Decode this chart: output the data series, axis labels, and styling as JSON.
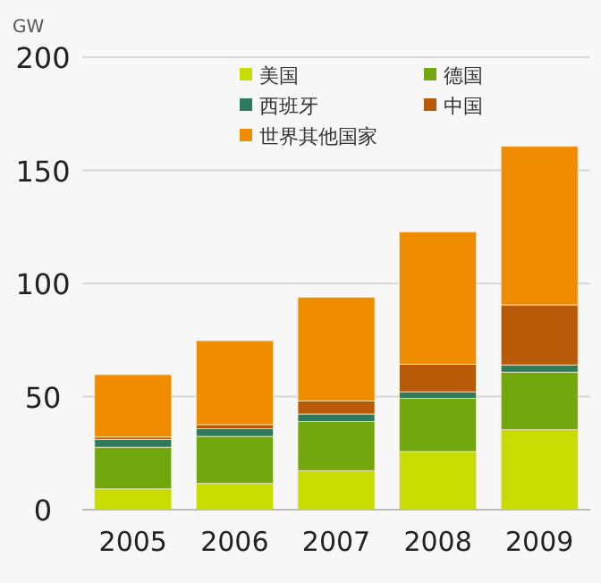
{
  "chart_data": {
    "type": "bar",
    "stacked": true,
    "ylabel": "GW",
    "categories": [
      "2005",
      "2006",
      "2007",
      "2008",
      "2009"
    ],
    "series": [
      {
        "name": "美国",
        "color": "#c8dc00",
        "values": [
          9.2,
          11.6,
          17.2,
          25.7,
          35.4
        ]
      },
      {
        "name": "德国",
        "color": "#72a80e",
        "values": [
          18.4,
          20.8,
          21.7,
          23.5,
          25.4
        ]
      },
      {
        "name": "西班牙",
        "color": "#2f7a5c",
        "values": [
          3.5,
          3.4,
          3.4,
          2.9,
          3.2
        ]
      },
      {
        "name": "中国",
        "color": "#b85a08",
        "values": [
          1,
          1.8,
          5.8,
          12.2,
          26.5
        ]
      },
      {
        "name": "世界其他国家",
        "color": "#ef8c00",
        "values": [
          27.6,
          37.1,
          45.8,
          58.5,
          70.1
        ]
      }
    ],
    "ylim": [
      0,
      200
    ],
    "yticks": [
      0,
      50,
      100,
      150,
      200
    ],
    "grid": "y",
    "legend": "top"
  }
}
